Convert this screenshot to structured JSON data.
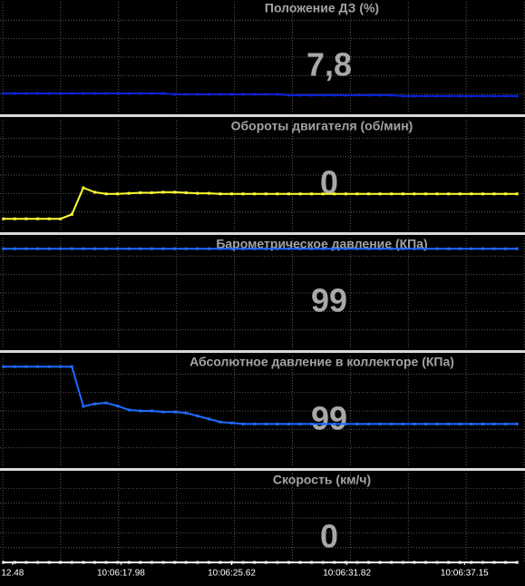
{
  "chart_data": [
    {
      "type": "line",
      "title": "Положение ДЗ  (%)",
      "current_value": "7,8",
      "color": "#0b22d6",
      "xlim": [
        -0.3,
        45.7
      ],
      "ylim": [
        0,
        50
      ],
      "values": [
        8.6,
        8.6,
        8.6,
        8.6,
        8.6,
        8.6,
        8.6,
        8.6,
        8.6,
        8.6,
        8.6,
        8.6,
        8.6,
        8.6,
        8.6,
        8.2,
        8.2,
        8.2,
        8.2,
        8.2,
        8.2,
        8.2,
        8.2,
        8.2,
        8.2,
        7.8,
        7.8,
        7.8,
        7.8,
        7.8,
        7.8,
        7.8,
        7.8,
        7.8,
        7.8,
        7.4,
        7.4,
        7.4,
        7.4,
        7.4,
        7.4,
        7.4,
        7.4,
        7.4,
        7.4,
        7.4
      ]
    },
    {
      "type": "line",
      "title": "Обороты двигателя  (об/мин)",
      "current_value": "0",
      "color": "#ffff33",
      "xlim": [
        -0.3,
        45.7
      ],
      "ylim": [
        0,
        2000
      ],
      "values": [
        210,
        210,
        210,
        210,
        210,
        210,
        290,
        770,
        690,
        660,
        660,
        670,
        680,
        680,
        690,
        690,
        680,
        670,
        670,
        660,
        660,
        660,
        660,
        660,
        660,
        660,
        660,
        660,
        660,
        660,
        660,
        660,
        660,
        660,
        660,
        660,
        660,
        660,
        660,
        660,
        660,
        660,
        660,
        660,
        660,
        660
      ]
    },
    {
      "type": "line",
      "title": "Барометрическое давление  (КПа)",
      "current_value": "99",
      "color": "#1e6cff",
      "xlim": [
        -0.3,
        45.7
      ],
      "ylim": [
        0,
        110
      ],
      "values": [
        99,
        99,
        99,
        99,
        99,
        99,
        99,
        99,
        99,
        99,
        99,
        99,
        99,
        99,
        99,
        99,
        99,
        99,
        99,
        99,
        99,
        99,
        99,
        99,
        99,
        99,
        99,
        99,
        99,
        99,
        99,
        99,
        99,
        99,
        99,
        99,
        99,
        99,
        99,
        99,
        99,
        99,
        99,
        99,
        99,
        99
      ]
    },
    {
      "type": "line",
      "title": "Абсолютное давление в коллекторе  (КПа)",
      "current_value": "99",
      "color": "#1e6cff",
      "xlim": [
        -0.3,
        45.7
      ],
      "ylim": [
        0,
        110
      ],
      "values": [
        99,
        99,
        99,
        99,
        99,
        99,
        99,
        59.5,
        62,
        63,
        60,
        56,
        55,
        55,
        54,
        54,
        53,
        50,
        47,
        44,
        43,
        42,
        42,
        42,
        42,
        42,
        42,
        42,
        42,
        42,
        42,
        42,
        42,
        42,
        42,
        42,
        42,
        42,
        42,
        42,
        42,
        42,
        42,
        42,
        42,
        42
      ]
    },
    {
      "type": "line",
      "title": "Скорость  (км/ч)",
      "current_value": "0",
      "color": "#ffffff",
      "xlim": [
        -0.3,
        45.7
      ],
      "ylim": [
        0,
        100
      ],
      "values": [
        0,
        0,
        0,
        0,
        0,
        0,
        0,
        0,
        0,
        0,
        0,
        0,
        0,
        0,
        0,
        0,
        0,
        0,
        0,
        0,
        0,
        0,
        0,
        0,
        0,
        0,
        0,
        0,
        0,
        0,
        0,
        0,
        0,
        0,
        0,
        0,
        0,
        0,
        0,
        0,
        0,
        0,
        0,
        0,
        0,
        0
      ],
      "xticks": [
        {
          "value": 0.8,
          "label": "12.48"
        },
        {
          "value": 10.3,
          "label": "10:06:17.98"
        },
        {
          "value": 20,
          "label": "10:06:25.62"
        },
        {
          "value": 30.1,
          "label": "10:06:31.82"
        },
        {
          "value": 40.4,
          "label": "10:06:37.15"
        }
      ]
    }
  ]
}
